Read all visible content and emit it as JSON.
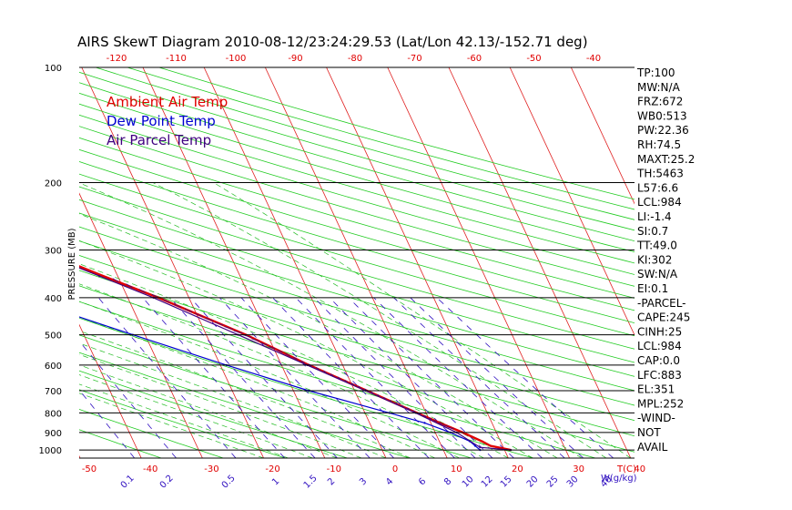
{
  "chart_data": {
    "type": "line",
    "title": "AIRS SkewT Diagram 2010-08-12/23:24:29.53 (Lat/Lon 42.13/-152.71 deg)",
    "ylabel": "PRESSURE (MB)",
    "y_scale": "log",
    "ylim": [
      1050,
      100
    ],
    "y_ticks": [
      "100",
      "200",
      "300",
      "400",
      "500",
      "600",
      "700",
      "800",
      "900",
      "1000"
    ],
    "bottom_temp_ticks": [
      "-50",
      "-40",
      "-30",
      "-20",
      "-10",
      "0",
      "10",
      "20",
      "30",
      "40"
    ],
    "top_temp_ticks": [
      "-120",
      "-110",
      "-100",
      "-90",
      "-80",
      "-70",
      "-60",
      "-50",
      "-40"
    ],
    "mixing_ratio_labels": [
      "0.1",
      "0.2",
      "0.5",
      "1",
      "1.5",
      "2",
      "3",
      "4",
      "6",
      "8",
      "10",
      "12",
      "15",
      "20",
      "25",
      "30",
      "40"
    ],
    "bottom_right_label": "T(C)",
    "bottom_right_label2": "W(g/kg)",
    "legend": [
      "Ambient Air Temp",
      "Dew Point Temp",
      "Air Parcel Temp"
    ],
    "series": [
      {
        "name": "Ambient Air Temp",
        "color": "#e00000",
        "points": [
          [
            1000,
            21
          ],
          [
            975,
            18
          ],
          [
            950,
            17
          ],
          [
            900,
            14.5
          ],
          [
            850,
            11.5
          ],
          [
            800,
            8.5
          ],
          [
            700,
            2
          ],
          [
            600,
            -5.5
          ],
          [
            500,
            -13.5
          ],
          [
            400,
            -25
          ],
          [
            350,
            -32.5
          ],
          [
            300,
            -41
          ],
          [
            280,
            -44
          ],
          [
            250,
            -51
          ],
          [
            220,
            -54
          ],
          [
            200,
            -55.5
          ],
          [
            175,
            -57
          ],
          [
            150,
            -57.5
          ],
          [
            125,
            -58
          ],
          [
            100,
            -59
          ]
        ]
      },
      {
        "name": "Dew Point Temp",
        "color": "#0000d0",
        "points": [
          [
            1000,
            16
          ],
          [
            975,
            15.5
          ],
          [
            950,
            15
          ],
          [
            900,
            12.5
          ],
          [
            850,
            9
          ],
          [
            800,
            4
          ],
          [
            700,
            -7.5
          ],
          [
            600,
            -19
          ],
          [
            500,
            -32
          ],
          [
            420,
            -44
          ],
          [
            400,
            -46.5
          ],
          [
            350,
            -52
          ],
          [
            300,
            -57
          ],
          [
            250,
            -68
          ],
          [
            200,
            -80
          ],
          [
            150,
            -92
          ],
          [
            125,
            -96
          ],
          [
            100,
            -101
          ]
        ]
      },
      {
        "name": "Air Parcel Temp",
        "color": "#400080",
        "points": [
          [
            1000,
            21
          ],
          [
            984,
            16.2
          ],
          [
            900,
            13.5
          ],
          [
            800,
            8.3
          ],
          [
            700,
            1.8
          ],
          [
            600,
            -5.8
          ],
          [
            500,
            -14.8
          ],
          [
            400,
            -25.8
          ],
          [
            351,
            -33
          ],
          [
            300,
            -41.6
          ],
          [
            252,
            -52
          ],
          [
            200,
            -62
          ],
          [
            150,
            -78
          ],
          [
            120,
            -90
          ],
          [
            100,
            -100
          ]
        ]
      }
    ]
  },
  "indices": [
    "TP:100",
    "MW:N/A",
    "FRZ:672",
    "WB0:513",
    "PW:22.36",
    "RH:74.5",
    "MAXT:25.2",
    "TH:5463",
    "L57:6.6",
    "LCL:984",
    "LI:-1.4",
    "SI:0.7",
    "TT:49.0",
    "KI:302",
    "SW:N/A",
    "EI:0.1",
    "-PARCEL-",
    "CAPE:245",
    "CINH:25",
    "LCL:984",
    "CAP:0.0",
    "LFC:883",
    "EL:351",
    "MPL:252",
    "-WIND-",
    "NOT",
    "AVAIL"
  ],
  "colors": {
    "isotherm": "#e02020",
    "dry_adiabat": "#22cc22",
    "moist_adiabat": "#22bb22",
    "mixing_ratio": "#3010c0",
    "isobar": "#000000"
  }
}
